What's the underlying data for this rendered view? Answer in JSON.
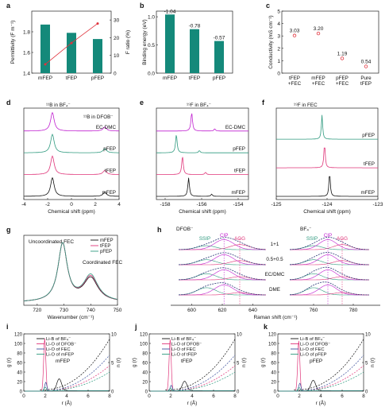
{
  "colors": {
    "teal": "#14897a",
    "red": "#e0323c",
    "blue": "#3b4f9b",
    "purple": "#c021d0",
    "green": "#2f9a7f",
    "pink": "#e0367a",
    "black": "#111111",
    "gray": "#777777",
    "navy": "#2c3a78"
  },
  "chart_data": [
    {
      "panel": "a",
      "type": "bar",
      "categories": [
        "mFEP",
        "tFEP",
        "pFEP"
      ],
      "series": [
        {
          "values": [
            1.87,
            1.79,
            1.73
          ]
        }
      ],
      "line_series": {
        "values": [
          5,
          17,
          28
        ],
        "axis": "right"
      },
      "ylabel": "Permittivity (F m⁻¹)",
      "ylabel_right": "F ratio (%)",
      "ylim": [
        1.4,
        2.0
      ],
      "yticks": [
        "1.4",
        "1.6",
        "1.8"
      ],
      "ylim_right": [
        0,
        35
      ],
      "yticks_right": [
        "0",
        "10",
        "20",
        "30"
      ]
    },
    {
      "panel": "b",
      "type": "bar",
      "categories": [
        "mFEP",
        "tFEP",
        "pFEP"
      ],
      "values": [
        -1.04,
        -0.78,
        -0.57
      ],
      "data_labels": [
        "-1.04",
        "-0.78",
        "-0.57"
      ],
      "ylabel": "Binding energy (eV)",
      "ylim": [
        0,
        1.1
      ],
      "yticks": [
        "0.0",
        "0.5",
        "1.0"
      ]
    },
    {
      "panel": "c",
      "type": "scatter",
      "categories": [
        "tFEP\n+FEC",
        "mFEP\n+FEC",
        "pFEP\n+FEC",
        "Pure\ntFEP"
      ],
      "values": [
        3.03,
        3.2,
        1.19,
        0.54
      ],
      "data_labels": [
        "3.03",
        "3.20",
        "1.19",
        "0.54"
      ],
      "ylabel": "Conductivity (mS cm⁻¹)",
      "ylim": [
        0,
        5
      ],
      "yticks": [
        "0",
        "1",
        "2",
        "3",
        "4",
        "5"
      ]
    },
    {
      "panel": "d",
      "type": "line",
      "series": [
        {
          "name": "EC-DMC"
        },
        {
          "name": "pFEP"
        },
        {
          "name": "tFEP"
        },
        {
          "name": "mFEP"
        }
      ],
      "annotations": [
        "¹¹B in BF₄⁻",
        "¹¹B in DFOB⁻"
      ],
      "xlabel": "Chemical shift (ppm)",
      "xlim": [
        -4,
        4
      ],
      "xticks": [
        "-4",
        "-2",
        "0",
        "2",
        "4"
      ],
      "peaks": [
        {
          "x": -1.6,
          "h": 1.0
        },
        {
          "x": 2.8,
          "h": 0.22
        }
      ]
    },
    {
      "panel": "e",
      "type": "line",
      "series": [
        {
          "name": "EC-DMC"
        },
        {
          "name": "pFEP"
        },
        {
          "name": "tFEP"
        },
        {
          "name": "mFEP"
        }
      ],
      "annotations": [
        "¹⁹F in BF₄⁻"
      ],
      "xlabel": "Chemical shift (ppm)",
      "xlim": [
        -159,
        -153
      ],
      "xticks": [
        "-158",
        "-156",
        "-154"
      ],
      "peak_positions": [
        -156.7,
        -157.7,
        -157.3,
        -156.9
      ]
    },
    {
      "panel": "f",
      "type": "line",
      "series": [
        {
          "name": "pFEP"
        },
        {
          "name": "tFEP"
        },
        {
          "name": "mFEP"
        }
      ],
      "annotations": [
        "¹⁹F in FEC"
      ],
      "xlabel": "Chemical shift (ppm)",
      "xlim": [
        -125,
        -123
      ],
      "xticks": [
        "-125",
        "-124",
        "-123"
      ],
      "peak_positions": [
        -124.1,
        -124.05,
        -123.95
      ]
    },
    {
      "panel": "g",
      "type": "line",
      "series": [
        {
          "name": "mFEP"
        },
        {
          "name": "tFEP"
        },
        {
          "name": "pFEP"
        }
      ],
      "annotations": [
        "Uncoordinated FEC",
        "Coordinated FEC"
      ],
      "xlabel": "Wavenumber (cm⁻¹)",
      "xlim": [
        715,
        750
      ],
      "xticks": [
        "720",
        "730",
        "740",
        "750"
      ],
      "peaks": [
        {
          "x": 729.5,
          "h": 1.0
        },
        {
          "x": 740,
          "h": 0.42
        }
      ]
    },
    {
      "panel": "h",
      "type": "line",
      "subtitle_left": "DFOB⁻",
      "subtitle_right": "BF₄⁻",
      "component_labels": [
        "SSIP",
        "CIP",
        "AGG"
      ],
      "series": [
        {
          "name": "1+1"
        },
        {
          "name": "0.5+0.5"
        },
        {
          "name": "EC/DMC"
        },
        {
          "name": "DME"
        }
      ],
      "xlabel": "Raman shift (cm⁻¹)",
      "xticks_left": [
        "600",
        "620",
        "640"
      ],
      "xticks_right": [
        "760",
        "780"
      ]
    },
    {
      "panel": "i",
      "type": "line",
      "title": "mFEP",
      "series": [
        {
          "name": "Li-B of BF₄⁻"
        },
        {
          "name": "Li-O of DFOB⁻"
        },
        {
          "name": "Li-O of FEC"
        },
        {
          "name": "Li-O of mFEP"
        }
      ],
      "xlabel": "r (Å)",
      "ylabel": "g (r)",
      "ylabel_right": "n (r)",
      "xticks": [
        "0",
        "2",
        "4",
        "6",
        "8"
      ],
      "yticks": [
        "0",
        "20",
        "40",
        "60",
        "80",
        "100",
        "120"
      ],
      "yticks_right": [
        "0",
        "5",
        "10"
      ]
    },
    {
      "panel": "j",
      "type": "line",
      "title": "tFEP",
      "series": [
        {
          "name": "Li-B of BF₄⁻"
        },
        {
          "name": "Li-O of DFOB⁻"
        },
        {
          "name": "Li-O of FEC"
        },
        {
          "name": "Li-O of tFEP"
        }
      ],
      "xlabel": "r (Å)",
      "ylabel": "g (r)",
      "ylabel_right": "n (r)",
      "xticks": [
        "0",
        "2",
        "4",
        "6",
        "8"
      ],
      "yticks": [
        "0",
        "20",
        "40",
        "60",
        "80",
        "100",
        "120"
      ],
      "yticks_right": [
        "0",
        "5",
        "10"
      ]
    },
    {
      "panel": "k",
      "type": "line",
      "title": "pFEP",
      "series": [
        {
          "name": "Li-B of BF₄⁻"
        },
        {
          "name": "Li-O of DFOB⁻"
        },
        {
          "name": "Li-O of FEC"
        },
        {
          "name": "Li-O of pFEP"
        }
      ],
      "xlabel": "r (Å)",
      "ylabel": "g (r)",
      "ylabel_right": "n (r)",
      "xticks": [
        "0",
        "2",
        "4",
        "6",
        "8"
      ],
      "yticks": [
        "0",
        "20",
        "40",
        "60",
        "80",
        "100",
        "120"
      ],
      "yticks_right": [
        "0",
        "5",
        "10"
      ]
    }
  ]
}
